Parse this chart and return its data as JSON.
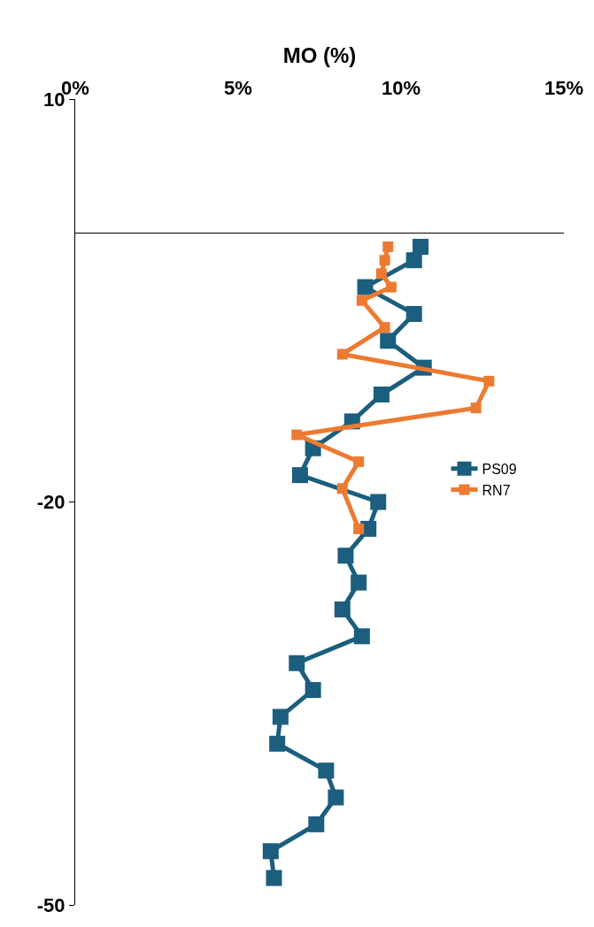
{
  "chart_data": {
    "type": "line",
    "xlabel": "MO (%)",
    "xlim": [
      0,
      15
    ],
    "xticks": [
      {
        "value": 0,
        "label": "0%"
      },
      {
        "value": 5,
        "label": "5%"
      },
      {
        "value": 10,
        "label": "10%"
      },
      {
        "value": 15,
        "label": "15%"
      }
    ],
    "ylim": [
      -50,
      10
    ],
    "yticks": [
      10,
      -20,
      -50
    ],
    "marker": "square",
    "line_style": "solid",
    "legend": "right",
    "series": [
      {
        "name": "PS09",
        "color": "#1b5e7e",
        "x": [
          10.6,
          10.4,
          8.9,
          10.4,
          9.6,
          10.7,
          9.4,
          8.5,
          7.3,
          6.9,
          9.3,
          9.0,
          8.3,
          8.7,
          8.2,
          8.8,
          6.8,
          7.3,
          6.3,
          6.2,
          7.7,
          8.0,
          7.4,
          6.0,
          6.1
        ],
        "values": [
          -1,
          -2,
          -4,
          -6,
          -8,
          -10,
          -12,
          -14,
          -16,
          -18,
          -20,
          -22,
          -24,
          -26,
          -28,
          -30,
          -32,
          -34,
          -36,
          -38,
          -40,
          -42,
          -44,
          -46,
          -48
        ]
      },
      {
        "name": "RN7",
        "color": "#ec7a31",
        "x": [
          9.6,
          9.5,
          9.4,
          9.7,
          8.8,
          9.5,
          8.2,
          12.7,
          12.3,
          6.8,
          8.7,
          8.2,
          8.7
        ],
        "values": [
          -1,
          -2,
          -3,
          -4,
          -5,
          -7,
          -9,
          -11,
          -13,
          -15,
          -17,
          -19,
          -22
        ]
      }
    ]
  }
}
